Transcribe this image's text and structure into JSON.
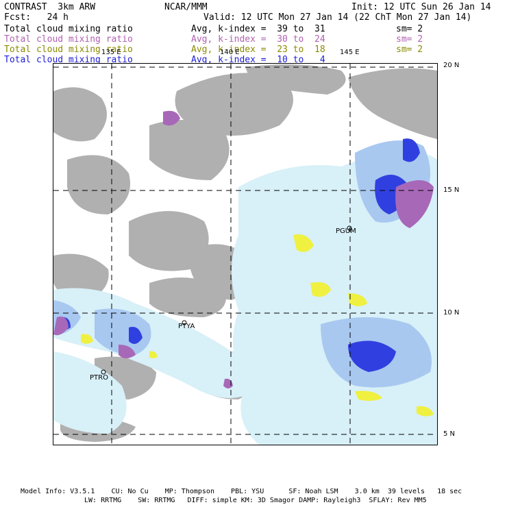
{
  "header": {
    "model": "CONTRAST  3km ARW",
    "org": "NCAR/MMM",
    "init": "Init: 12 UTC Sun 26 Jan 14",
    "fcst": "Fcst:   24 h",
    "valid": "Valid: 12 UTC Mon 27 Jan 14 (22 ChT Mon 27 Jan 14)"
  },
  "legend": [
    {
      "field": "Total cloud mixing ratio",
      "range": "Avg, k-index =  39 to  31",
      "sm": "sm= 2",
      "color": "#000000"
    },
    {
      "field": "Total cloud mixing ratio",
      "range": "Avg, k-index =  30 to  24",
      "sm": "sm= 2",
      "color": "#b060b0"
    },
    {
      "field": "Total cloud mixing ratio",
      "range": "Avg, k-index =  23 to  18",
      "sm": "sm= 2",
      "color": "#8a8a00"
    },
    {
      "field": "Total cloud mixing ratio",
      "range": "Avg, k-index =  10 to   4",
      "sm": "",
      "color": "#1c1cd8"
    }
  ],
  "map": {
    "lon_labels": [
      "135 E",
      "140 E",
      "145 E"
    ],
    "lat_labels": [
      "20 N",
      "15 N",
      "10 N",
      "5 N"
    ],
    "stations": [
      "PGUM",
      "PTYA",
      "PTRO"
    ],
    "colors": {
      "gray": "#a8a8a8",
      "pink": "#a868b8",
      "yellow": "#f0f040",
      "light_blue": "#d8f0f8",
      "mid_blue": "#a8c8f0",
      "blue": "#3040e0"
    }
  },
  "footer": {
    "line1": "Model Info: V3.5.1    CU: No Cu    MP: Thompson    PBL: YSU      SF: Noah LSM    3.0 km  39 levels   18 sec",
    "line2": "LW: RRTMG    SW: RRTMG   DIFF: simple KM: 3D Smagor DAMP: Rayleigh3  SFLAY: Rev MM5"
  }
}
